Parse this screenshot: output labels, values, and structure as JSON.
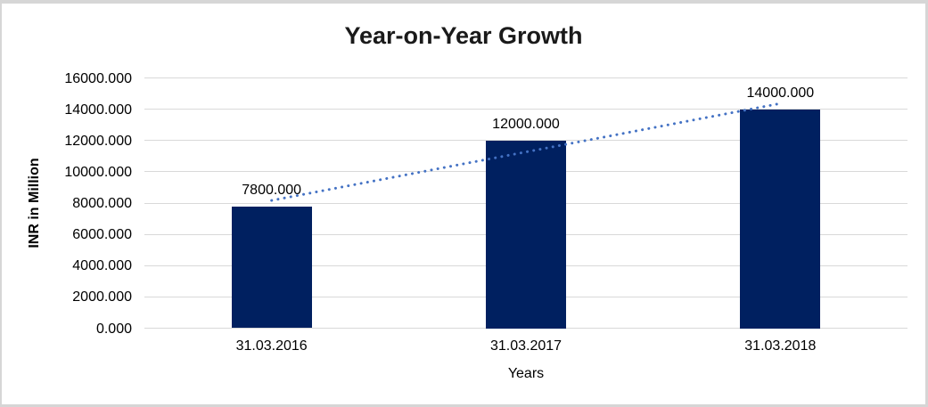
{
  "chart_data": {
    "type": "bar",
    "title": "Year-on-Year Growth",
    "xlabel": "Years",
    "ylabel": "INR in Million",
    "categories": [
      "31.03.2016",
      "31.03.2017",
      "31.03.2018"
    ],
    "values": [
      7800,
      12000,
      14000
    ],
    "data_labels": [
      "7800.000",
      "12000.000",
      "14000.000"
    ],
    "y_ticks": [
      "0.000",
      "2000.000",
      "4000.000",
      "6000.000",
      "8000.000",
      "10000.000",
      "12000.000",
      "14000.000",
      "16000.000"
    ],
    "ylim": [
      0,
      16000
    ],
    "grid": true,
    "legend": "none",
    "trendline": {
      "type": "linear",
      "style": "dotted"
    },
    "colors": {
      "bar": "#002060",
      "trendline": "#4472C4",
      "gridline": "#d9d9d9",
      "text": "#000000",
      "title": "#1a1a1a",
      "frame_border": "#d6d6d6"
    }
  }
}
